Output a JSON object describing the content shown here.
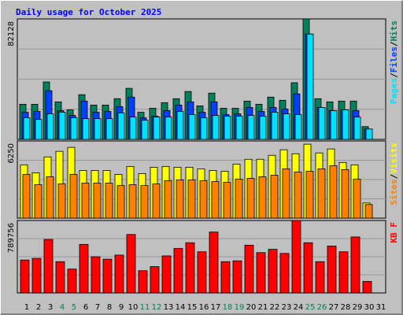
{
  "chart_data": [
    {
      "type": "bar",
      "title": "Daily usage for October 2025",
      "title_color": "#0000ff",
      "ylim": [
        0,
        82128
      ],
      "yticks": [
        82128
      ],
      "grid": true,
      "legend_separator": "/",
      "series": [
        {
          "name": "Hits",
          "color": "#00805c",
          "values": [
            23936,
            23936,
            39168,
            25568,
            20128,
            30464,
            23392,
            23392,
            27744,
            34816,
            18496,
            21216,
            25024,
            27744,
            32640,
            22848,
            31552,
            21216,
            21216,
            26112,
            23936,
            28832,
            26656,
            38624,
            82128,
            27744,
            25568,
            26112,
            26112,
            8704,
            0
          ]
        },
        {
          "name": "Files",
          "color": "#0040ff",
          "values": [
            18496,
            19040,
            33184,
            19584,
            16320,
            26112,
            18496,
            19040,
            22304,
            28832,
            14688,
            15776,
            19584,
            23392,
            25568,
            18496,
            25568,
            16864,
            17408,
            21760,
            19040,
            21760,
            20672,
            31008,
            71808,
            21760,
            19584,
            20128,
            19584,
            7072,
            0
          ]
        },
        {
          "name": "Pages",
          "color": "#00e0ff",
          "values": [
            14688,
            13600,
            17408,
            18496,
            14688,
            14144,
            14144,
            14144,
            17952,
            15232,
            13056,
            15232,
            15232,
            19040,
            16864,
            14688,
            16320,
            15776,
            15776,
            16320,
            15776,
            18496,
            17408,
            16864,
            71808,
            21760,
            19584,
            20128,
            15232,
            7072,
            0
          ]
        }
      ]
    },
    {
      "type": "bar",
      "ylim": [
        0,
        6250
      ],
      "yticks": [
        6250
      ],
      "grid": true,
      "legend_separator": "/",
      "series": [
        {
          "name": "Visits",
          "color": "#ffff00",
          "values": [
            4315,
            3671,
            4959,
            5410,
            5732,
            3864,
            3864,
            3864,
            3542,
            4186,
            3606,
            4122,
            4186,
            4122,
            4122,
            3993,
            3864,
            3800,
            4379,
            4766,
            4766,
            5088,
            5538,
            5216,
            5989,
            5281,
            5603,
            4508,
            4315,
            1224,
            0
          ]
        },
        {
          "name": "Sites",
          "color": "#ff8000",
          "values": [
            3542,
            2705,
            3349,
            2769,
            3542,
            2834,
            2834,
            2834,
            2640,
            2705,
            2640,
            2769,
            3027,
            3091,
            3091,
            3027,
            2962,
            2898,
            3156,
            3220,
            3349,
            3478,
            3993,
            3735,
            3800,
            3993,
            4250,
            3928,
            3156,
            1095,
            0
          ]
        }
      ]
    },
    {
      "type": "bar",
      "ylim": [
        0,
        789756
      ],
      "yticks": [
        789756
      ],
      "grid": true,
      "categories": [
        "1",
        "2",
        "3",
        "4",
        "5",
        "6",
        "7",
        "8",
        "9",
        "10",
        "11",
        "12",
        "13",
        "14",
        "15",
        "16",
        "17",
        "18",
        "19",
        "20",
        "21",
        "22",
        "23",
        "24",
        "25",
        "26",
        "27",
        "28",
        "29",
        "30",
        "31"
      ],
      "category_colors": [
        "#000000",
        "#000000",
        "#000000",
        "#00805c",
        "#00805c",
        "#000000",
        "#000000",
        "#000000",
        "#000000",
        "#000000",
        "#00805c",
        "#00805c",
        "#000000",
        "#000000",
        "#000000",
        "#000000",
        "#000000",
        "#00805c",
        "#00805c",
        "#000000",
        "#000000",
        "#000000",
        "#000000",
        "#000000",
        "#00805c",
        "#00805c",
        "#000000",
        "#000000",
        "#000000",
        "#000000",
        "#000000"
      ],
      "series": [
        {
          "name": "KB F",
          "color": "#ff0000",
          "values": [
            358980,
            376929,
            583343,
            341031,
            260261,
            529496,
            394878,
            367955,
            412827,
            637190,
            242312,
            287184,
            403853,
            484623,
            547445,
            448725,
            664113,
            341031,
            350006,
            520521,
            439751,
            475649,
            430776,
            789756,
            547445,
            341031,
            511547,
            448725,
            610266,
            125643,
            0
          ]
        }
      ]
    }
  ]
}
